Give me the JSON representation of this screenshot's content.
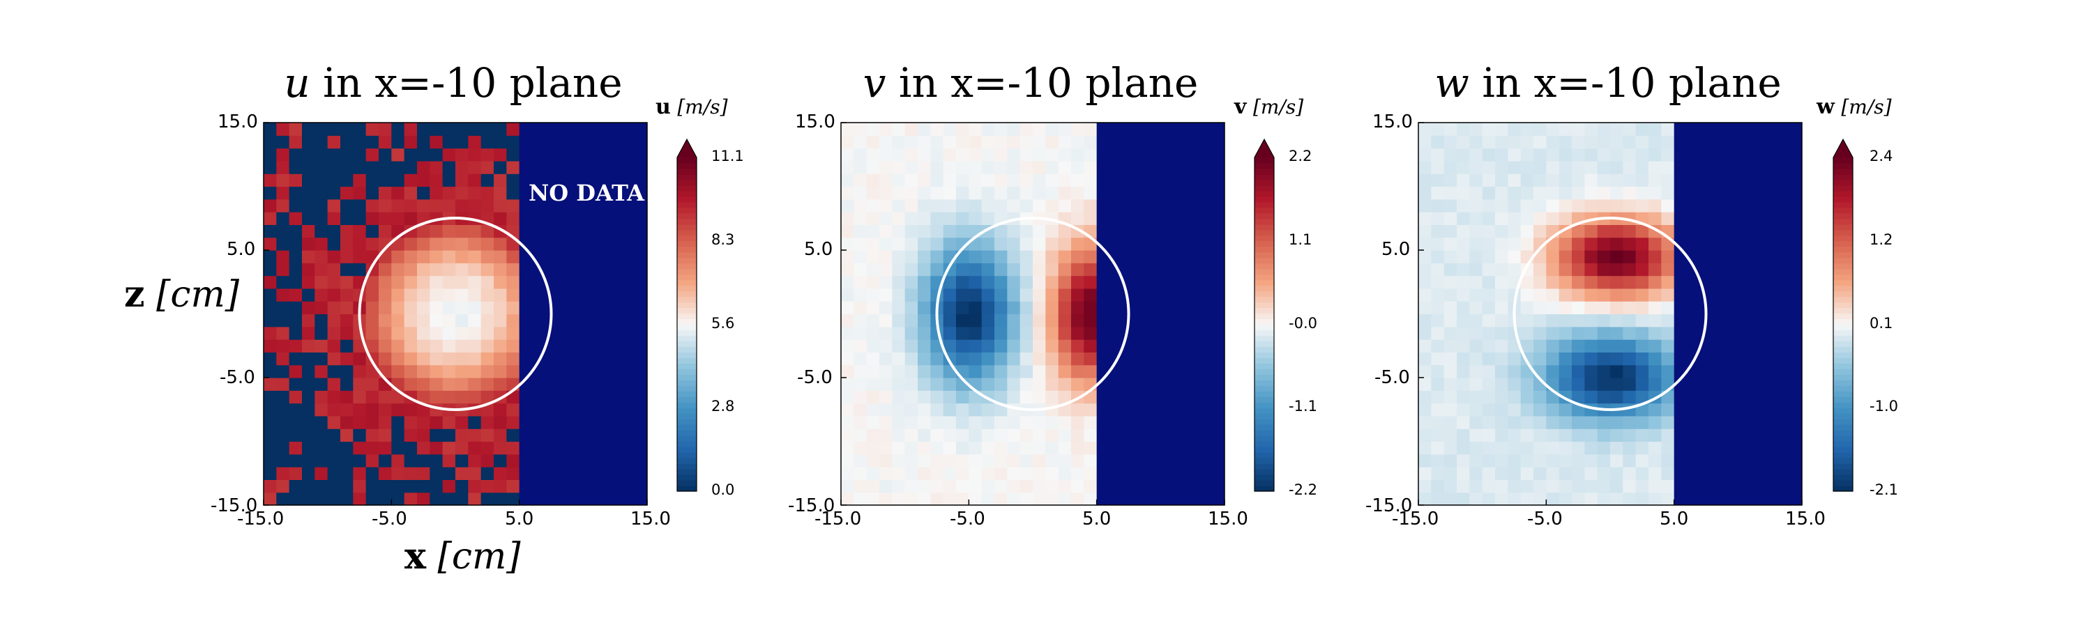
{
  "panels": [
    {
      "title_var": "u",
      "title_rest": " in x=-10 plane",
      "cb_var": "u",
      "cb_unit": "[m/s]",
      "cb_ticks": [
        "11.1",
        "8.3",
        "5.6",
        "2.8",
        "0.0"
      ],
      "x_ticks": [
        "-15.0",
        "-5.0",
        "5.0",
        "15.0"
      ],
      "y_ticks": [
        "15.0",
        "5.0",
        "-5.0",
        "-15.0"
      ],
      "no_data_label": "NO DATA"
    },
    {
      "title_var": "v",
      "title_rest": " in x=-10 plane",
      "cb_var": "v",
      "cb_unit": "[m/s]",
      "cb_ticks": [
        "2.2",
        "1.1",
        "-0.0",
        "-1.1",
        "-2.2"
      ],
      "x_ticks": [
        "-15.0",
        "-5.0",
        "5.0",
        "15.0"
      ],
      "y_ticks": [
        "15.0",
        "5.0",
        "-5.0",
        "-15.0"
      ]
    },
    {
      "title_var": "w",
      "title_rest": " in x=-10 plane",
      "cb_var": "w",
      "cb_unit": "[m/s]",
      "cb_ticks": [
        "2.4",
        "1.2",
        "0.1",
        "-1.0",
        "-2.1"
      ],
      "x_ticks": [
        "-15.0",
        "-5.0",
        "5.0",
        "15.0"
      ],
      "y_ticks": [
        "15.0",
        "5.0",
        "-5.0",
        "-15.0"
      ]
    }
  ],
  "x_axis": {
    "var": "x",
    "unit": "[cm]"
  },
  "z_axis": {
    "var": "z",
    "unit": "[cm]"
  },
  "chart_data": [
    {
      "type": "heatmap",
      "title": "u in x=-10 plane",
      "xlabel": "x [cm]",
      "ylabel": "z [cm]",
      "xlim": [
        -15,
        15
      ],
      "ylim": [
        -15,
        15
      ],
      "colorbar_label": "u [m/s]",
      "colorbar_range": [
        0.0,
        11.1
      ],
      "colormap": "RdBu_r",
      "nodata_region": {
        "x": [
          5,
          15
        ],
        "z": [
          -15,
          15
        ],
        "color": "#06107a",
        "label": "NO DATA"
      },
      "circle": {
        "center": [
          0,
          0
        ],
        "radius": 7.5
      },
      "field_description": "near-uniform ~9 m/s jet with low-speed core (~5.6) at center; scattered dropouts (0) on the periphery",
      "peak_values": {
        "background": 9.5,
        "core_min": 5.4,
        "dropout": 0.0
      }
    },
    {
      "type": "heatmap",
      "title": "v in x=-10 plane",
      "xlabel": "x [cm]",
      "ylabel": "z [cm]",
      "xlim": [
        -15,
        15
      ],
      "ylim": [
        -15,
        15
      ],
      "colorbar_label": "v [m/s]",
      "colorbar_range": [
        -2.2,
        2.2
      ],
      "colormap": "RdBu_r",
      "nodata_region": {
        "x": [
          5,
          15
        ],
        "z": [
          -15,
          15
        ],
        "color": "#06107a"
      },
      "circle": {
        "center": [
          0,
          0
        ],
        "radius": 7.5
      },
      "peak_values": {
        "min_at": [
          -5,
          0
        ],
        "min": -2.2,
        "max_at": [
          4.5,
          0
        ],
        "max": 2.2
      }
    },
    {
      "type": "heatmap",
      "title": "w in x=-10 plane",
      "xlabel": "x [cm]",
      "ylabel": "z [cm]",
      "xlim": [
        -15,
        15
      ],
      "ylim": [
        -15,
        15
      ],
      "colorbar_label": "w [m/s]",
      "colorbar_range": [
        -2.1,
        2.4
      ],
      "colormap": "RdBu_r",
      "nodata_region": {
        "x": [
          5,
          15
        ],
        "z": [
          -15,
          15
        ],
        "color": "#06107a"
      },
      "circle": {
        "center": [
          0,
          0
        ],
        "radius": 7.5
      },
      "peak_values": {
        "max_at": [
          0.5,
          4.5
        ],
        "max": 2.4,
        "min_at": [
          0,
          -5
        ],
        "min": -2.1
      }
    }
  ]
}
